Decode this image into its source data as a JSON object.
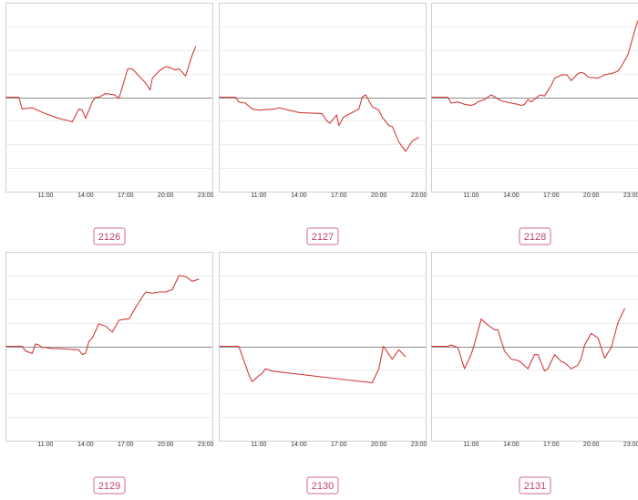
{
  "colors": {
    "series": "#d23c3c",
    "baseline": "#8c8c8c",
    "grid": "#ececec",
    "frame": "#cfcfcf",
    "badge_border": "#d06a8c",
    "badge_text": "#c0436e"
  },
  "chart_data": [
    {
      "type": "line",
      "label": "2126",
      "x_ticks": [
        "11:00",
        "14:00",
        "17:00",
        "20:00",
        "23:00"
      ],
      "xlim": [
        "08:00",
        "23:30"
      ],
      "ylim": [
        -4,
        4
      ],
      "grid": true,
      "series": [
        {
          "x": [
            "08:00",
            "09:00",
            "09:15",
            "10:00",
            "11:00",
            "11:30",
            "12:00",
            "12:45",
            "13:00",
            "13:30",
            "13:45",
            "14:00",
            "14:30",
            "14:45",
            "15:00",
            "15:30",
            "16:10",
            "16:30",
            "17:10",
            "17:30",
            "18:00",
            "18:30",
            "18:50",
            "19:00",
            "19:30",
            "20:00",
            "20:20",
            "20:45",
            "21:00",
            "21:30",
            "22:00",
            "22:15"
          ],
          "y": [
            0,
            0,
            -0.5,
            -0.45,
            -0.7,
            -0.8,
            -0.9,
            -1,
            -1.05,
            -0.5,
            -0.55,
            -0.9,
            -0.2,
            0,
            0,
            0.15,
            0.1,
            -0.05,
            1.2,
            1.2,
            0.9,
            0.6,
            0.3,
            0.8,
            1.1,
            1.3,
            1.25,
            1.15,
            1.2,
            0.9,
            1.8,
            2.15
          ]
        }
      ]
    },
    {
      "type": "line",
      "label": "2127",
      "x_ticks": [
        "11:00",
        "14:00",
        "17:00",
        "20:00",
        "23:00"
      ],
      "xlim": [
        "08:00",
        "23:30"
      ],
      "ylim": [
        -4,
        4
      ],
      "grid": true,
      "series": [
        {
          "x": [
            "08:00",
            "09:15",
            "09:30",
            "10:00",
            "10:30",
            "11:00",
            "12:15",
            "12:30",
            "14:00",
            "15:45",
            "16:05",
            "16:20",
            "16:50",
            "17:00",
            "17:20",
            "17:50",
            "18:30",
            "18:45",
            "19:00",
            "19:30",
            "20:00",
            "20:15",
            "20:45",
            "21:00",
            "21:30",
            "22:00",
            "22:30",
            "23:00"
          ],
          "y": [
            0,
            0,
            -0.2,
            -0.25,
            -0.5,
            -0.55,
            -0.5,
            -0.45,
            -0.65,
            -0.7,
            -1.0,
            -1.1,
            -0.75,
            -1.2,
            -0.85,
            -0.7,
            -0.5,
            0,
            0.1,
            -0.4,
            -0.55,
            -0.85,
            -1.2,
            -1.25,
            -1.9,
            -2.3,
            -1.85,
            -1.7
          ]
        }
      ]
    },
    {
      "type": "line",
      "label": "2128",
      "x_ticks": [
        "11:00",
        "14:00",
        "17:00",
        "20:00",
        "23:00"
      ],
      "xlim": [
        "08:00",
        "23:30"
      ],
      "ylim": [
        -4,
        4
      ],
      "grid": true,
      "series": [
        {
          "x": [
            "08:00",
            "09:15",
            "09:30",
            "10:00",
            "10:30",
            "11:00",
            "11:15",
            "11:30",
            "12:00",
            "12:15",
            "12:30",
            "13:15",
            "14:00",
            "14:30",
            "14:45",
            "15:00",
            "15:15",
            "15:30",
            "16:10",
            "16:30",
            "17:00",
            "17:15",
            "17:50",
            "18:10",
            "18:30",
            "19:00",
            "19:15",
            "19:30",
            "19:45",
            "20:30",
            "21:00",
            "21:30",
            "22:00",
            "22:15",
            "22:45",
            "23:15",
            "23:30"
          ],
          "y": [
            0,
            0,
            -0.25,
            -0.2,
            -0.3,
            -0.35,
            -0.3,
            -0.2,
            -0.1,
            0,
            0.1,
            -0.15,
            -0.25,
            -0.3,
            -0.35,
            -0.3,
            -0.1,
            -0.2,
            0.1,
            0.05,
            0.5,
            0.8,
            0.95,
            0.95,
            0.7,
            1.0,
            1.05,
            1.0,
            0.85,
            0.8,
            0.95,
            1.0,
            1.1,
            1.3,
            1.8,
            2.8,
            3.25
          ]
        }
      ]
    },
    {
      "type": "line",
      "label": "2129",
      "x_ticks": [
        "11:00",
        "14:00",
        "17:00",
        "20:00",
        "23:00"
      ],
      "xlim": [
        "08:00",
        "23:30"
      ],
      "ylim": [
        -4,
        4
      ],
      "grid": true,
      "series": [
        {
          "x": [
            "08:00",
            "09:15",
            "09:30",
            "10:00",
            "10:15",
            "10:30",
            "10:45",
            "11:00",
            "11:30",
            "12:00",
            "13:30",
            "13:45",
            "14:00",
            "14:15",
            "14:30",
            "14:45",
            "15:00",
            "15:30",
            "16:00",
            "16:30",
            "17:00",
            "17:15",
            "17:45",
            "18:30",
            "19:00",
            "19:30",
            "20:00",
            "20:30",
            "21:00",
            "21:30",
            "22:00",
            "22:30"
          ],
          "y": [
            0,
            0,
            -0.2,
            -0.3,
            0.1,
            0.05,
            -0.05,
            -0.05,
            -0.1,
            -0.1,
            -0.15,
            -0.35,
            -0.3,
            0.2,
            0.35,
            0.65,
            0.95,
            0.85,
            0.6,
            1.1,
            1.15,
            1.15,
            1.65,
            2.3,
            2.25,
            2.3,
            2.3,
            2.4,
            3.0,
            2.95,
            2.75,
            2.85
          ]
        }
      ]
    },
    {
      "type": "line",
      "label": "2130",
      "x_ticks": [
        "11:00",
        "14:00",
        "17:00",
        "20:00",
        "23:00"
      ],
      "xlim": [
        "08:00",
        "23:30"
      ],
      "ylim": [
        -4,
        4
      ],
      "grid": true,
      "series": [
        {
          "x": [
            "08:00",
            "09:30",
            "10:15",
            "10:30",
            "11:00",
            "11:15",
            "11:30",
            "12:00",
            "19:30",
            "20:00",
            "20:20",
            "21:00",
            "21:30",
            "22:00"
          ],
          "y": [
            0,
            0,
            -1.2,
            -1.5,
            -1.25,
            -1.15,
            -0.95,
            -1.05,
            -1.55,
            -0.95,
            0,
            -0.55,
            -0.15,
            -0.45
          ]
        }
      ]
    },
    {
      "type": "line",
      "label": "2131",
      "x_ticks": [
        "11:00",
        "14:00",
        "17:00",
        "20:00",
        "23:00"
      ],
      "xlim": [
        "08:00",
        "23:30"
      ],
      "ylim": [
        -4,
        4
      ],
      "grid": true,
      "series": [
        {
          "x": [
            "08:00",
            "09:15",
            "09:30",
            "10:00",
            "10:30",
            "11:00",
            "11:15",
            "11:45",
            "12:15",
            "12:45",
            "13:00",
            "13:30",
            "14:00",
            "14:30",
            "14:45",
            "15:15",
            "15:45",
            "16:00",
            "16:30",
            "16:45",
            "17:15",
            "17:45",
            "18:00",
            "18:30",
            "19:00",
            "19:15",
            "19:30",
            "20:00",
            "20:30",
            "21:00",
            "21:30",
            "22:00",
            "22:30"
          ],
          "y": [
            0,
            0,
            0.05,
            -0.05,
            -0.95,
            -0.35,
            0.1,
            1.15,
            0.9,
            0.7,
            0.7,
            -0.2,
            -0.55,
            -0.6,
            -0.7,
            -0.95,
            -0.35,
            -0.35,
            -1.05,
            -0.95,
            -0.35,
            -0.65,
            -0.7,
            -0.95,
            -0.8,
            -0.5,
            0.05,
            0.55,
            0.35,
            -0.5,
            -0.05,
            1.0,
            1.6
          ]
        }
      ]
    }
  ]
}
